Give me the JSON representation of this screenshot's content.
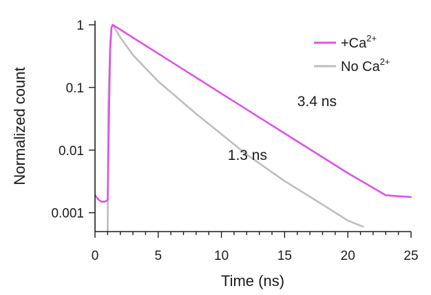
{
  "chart_data": {
    "type": "line",
    "xlabel": "Time (ns)",
    "ylabel": "Normalized count",
    "xlim": [
      0,
      25
    ],
    "ylim": [
      0.0005,
      1
    ],
    "yscale": "log",
    "grid": false,
    "legend_position": "top-right",
    "x_ticks": [
      0,
      5,
      10,
      15,
      20,
      25
    ],
    "x_tick_labels": [
      "0",
      "5",
      "10",
      "15",
      "20",
      "25"
    ],
    "y_ticks": [
      0.001,
      0.01,
      0.1,
      1
    ],
    "y_tick_labels": [
      "0.001",
      "0.01",
      "0.1",
      "1"
    ],
    "series": [
      {
        "name": "+Ca2+",
        "legend_base": "+Ca",
        "legend_sup": "2+",
        "color": "#e050e8",
        "x": [
          0,
          0.3,
          0.5,
          0.8,
          1.0,
          1.1,
          1.2,
          1.3,
          1.4,
          5,
          10,
          15,
          20,
          23,
          25
        ],
        "y": [
          0.0019,
          0.0016,
          0.0015,
          0.0015,
          0.0016,
          0.03,
          0.4,
          0.9,
          1.0,
          0.348,
          0.08,
          0.0185,
          0.0043,
          0.0019,
          0.00178
        ]
      },
      {
        "name": "No Ca2+",
        "legend_base": "No Ca",
        "legend_sup": "2+",
        "color": "#bdbdbd",
        "x": [
          1.0,
          1.05,
          1.2,
          1.3,
          1.4,
          2,
          3,
          5,
          8,
          10,
          12,
          15,
          18,
          20,
          21.2
        ],
        "y": [
          0.0005,
          0.05,
          0.5,
          0.9,
          1.0,
          0.63,
          0.33,
          0.125,
          0.038,
          0.018,
          0.0085,
          0.0032,
          0.00135,
          0.00075,
          0.0006
        ]
      }
    ],
    "annotations": [
      {
        "text": "3.4 ns",
        "x": 16,
        "y": 0.05
      },
      {
        "text": "1.3 ns",
        "x": 10.5,
        "y": 0.007
      }
    ]
  }
}
